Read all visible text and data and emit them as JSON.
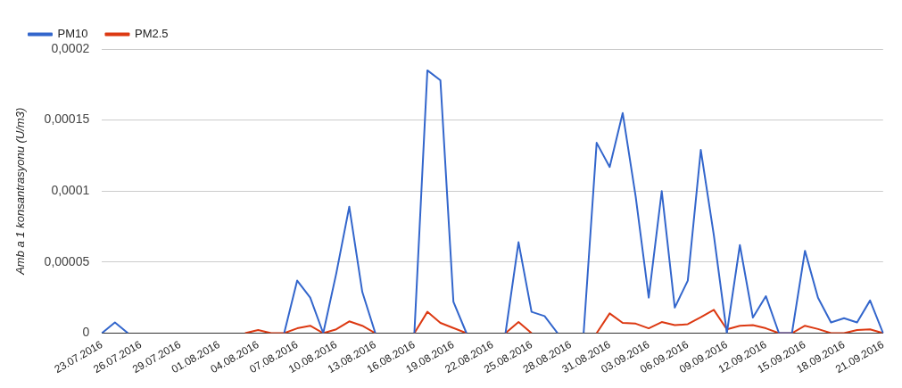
{
  "chart_data": {
    "type": "line",
    "ylabel": "Amb a 1 konsantrasyonu (U/m3)",
    "categories": [
      "23.07.2016",
      null,
      null,
      "26.07.2016",
      null,
      null,
      "29.07.2016",
      null,
      null,
      "01.08.2016",
      null,
      null,
      "04.08.2016",
      null,
      null,
      "07.08.2016",
      null,
      null,
      "10.08.2016",
      null,
      null,
      "13.08.2016",
      null,
      null,
      "16.08.2016",
      null,
      null,
      "19.08.2016",
      null,
      null,
      "22.08.2016",
      null,
      null,
      "25.08.2016",
      null,
      null,
      "28.08.2016",
      null,
      null,
      "31.08.2016",
      null,
      null,
      "03.09.2016",
      null,
      null,
      "06.09.2016",
      null,
      null,
      "09.09.2016",
      null,
      null,
      "12.09.2016",
      null,
      null,
      "15.09.2016",
      null,
      null,
      "18.09.2016",
      null,
      null,
      "21.09.2016"
    ],
    "series": [
      {
        "name": "PM10",
        "color": "#3366cc",
        "values": [
          0,
          7.5e-06,
          0,
          null,
          null,
          null,
          null,
          null,
          null,
          null,
          null,
          null,
          null,
          null,
          0,
          3.7e-05,
          2.5e-05,
          0,
          4.2e-05,
          8.9e-05,
          2.9e-05,
          0,
          null,
          null,
          0,
          0.000185,
          0.000178,
          2.2e-05,
          0,
          null,
          null,
          0,
          6.4e-05,
          1.5e-05,
          1.2e-05,
          0,
          null,
          0,
          0.000134,
          0.000117,
          0.000155,
          9.6e-05,
          2.5e-05,
          0.0001,
          1.8e-05,
          3.7e-05,
          0.000129,
          6.9e-05,
          0,
          6.2e-05,
          1.1e-05,
          2.6e-05,
          0,
          0,
          5.8e-05,
          2.5e-05,
          7.5e-06,
          1.05e-05,
          7.5e-06,
          2.3e-05,
          0
        ]
      },
      {
        "name": "PM2.5",
        "color": "#dc3912",
        "values": [
          null,
          null,
          null,
          null,
          null,
          null,
          null,
          null,
          null,
          null,
          null,
          0,
          2.2e-06,
          0,
          0,
          3.4e-06,
          5.2e-06,
          0,
          2.7e-06,
          8.3e-06,
          5.2e-06,
          0,
          null,
          null,
          0,
          1.5e-05,
          7.2e-06,
          3.6e-06,
          0,
          null,
          null,
          0,
          7.8e-06,
          0,
          null,
          null,
          null,
          null,
          0,
          1.39e-05,
          7.2e-06,
          6.7e-06,
          3.4e-06,
          7.8e-06,
          5.6e-06,
          6.3e-06,
          1.12e-05,
          1.64e-05,
          2.7e-06,
          5.2e-06,
          5.6e-06,
          3.4e-06,
          0,
          0,
          5.2e-06,
          2.9e-06,
          0,
          0,
          2.2e-06,
          2.7e-06,
          0
        ]
      }
    ],
    "ylim": [
      0,
      0.0002
    ],
    "yticks": [
      0,
      {
        "value": 5e-05,
        "label": "0,00005"
      },
      {
        "value": 0.0001,
        "label": "0,0001"
      },
      {
        "value": 0.00015,
        "label": "0,00015"
      },
      {
        "value": 0.0002,
        "label": "0,0002"
      }
    ],
    "grid": "y",
    "legend": "top left",
    "marker": "none",
    "line_style": "solid"
  }
}
